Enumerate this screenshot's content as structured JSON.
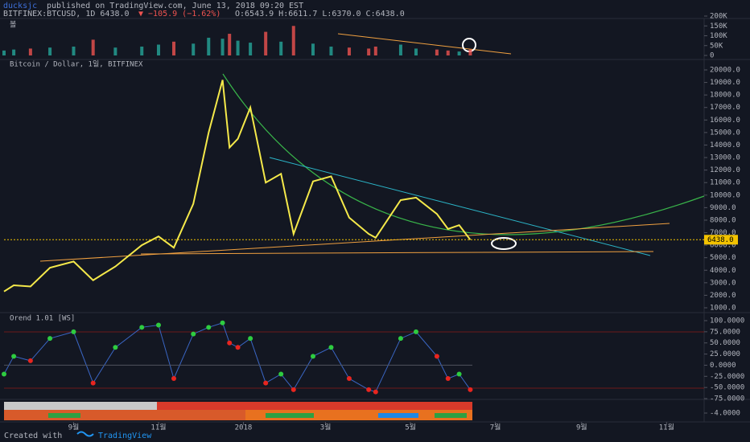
{
  "header": {
    "author": "ducksjc",
    "published": "published on TradingView.com, June 13, 2018 09:20 EST",
    "symbol": "BITFINEX:BTCUSD, 1D 6438.0",
    "change": "▼ −105.9 (−1.62%)",
    "ohlc": "O:6543.9 H:6611.7 L:6370.0 C:6438.0"
  },
  "chart_data": [
    {
      "type": "bar",
      "title": "볼",
      "up_color": "#26a69a",
      "down_color": "#ef5350",
      "values": [
        25000,
        30000,
        35000,
        40000,
        45000,
        80000,
        40000,
        45000,
        55000,
        70000,
        60000,
        90000,
        85000,
        110000,
        75000,
        65000,
        120000,
        70000,
        150000,
        60000,
        45000,
        40000,
        35000,
        45000,
        55000,
        35000,
        30000,
        25000,
        20000,
        30000
      ],
      "ylim": [
        0,
        200000
      ],
      "yticks": [
        {
          "value": 200000,
          "label": "200K"
        },
        {
          "value": 150000,
          "label": "150K"
        },
        {
          "value": 100000,
          "label": "100K"
        },
        {
          "value": 50000,
          "label": "50K"
        },
        0
      ]
    },
    {
      "type": "line",
      "title": "Bitcoin / Dollar, 1일, BITFINEX",
      "color": "#f5e94a",
      "x": [
        12,
        19,
        31,
        45,
        62,
        76,
        92,
        111,
        123,
        134,
        148,
        159,
        169,
        174,
        180,
        189,
        200,
        211,
        220,
        234,
        247,
        260,
        274,
        279,
        297,
        308,
        323,
        331,
        339,
        347
      ],
      "values": [
        2300,
        2800,
        2700,
        4200,
        4700,
        3200,
        4300,
        6000,
        6700,
        5800,
        9300,
        15000,
        19200,
        13800,
        14500,
        17000,
        11000,
        11700,
        6900,
        11100,
        11500,
        8200,
        6900,
        6600,
        9600,
        9800,
        8500,
        7300,
        7600,
        6438
      ],
      "last_price": {
        "value": 6438,
        "label": "6438.0"
      },
      "xlim": [
        12,
        515
      ],
      "xticks": [
        {
          "value": 62,
          "label": "9월"
        },
        {
          "value": 123,
          "label": "11월"
        },
        {
          "value": 184,
          "label": "2018"
        },
        {
          "value": 243,
          "label": "3월"
        },
        {
          "value": 304,
          "label": "5월"
        },
        {
          "value": 365,
          "label": "7월"
        },
        {
          "value": 427,
          "label": "9월"
        },
        {
          "value": 488,
          "label": "11월"
        }
      ],
      "ylim": [
        1000,
        20000
      ],
      "yticks": [
        {
          "value": 20000,
          "label": "20000.0"
        },
        {
          "value": 19000,
          "label": "19000.0"
        },
        {
          "value": 18000,
          "label": "18000.0"
        },
        {
          "value": 17000,
          "label": "17000.0"
        },
        {
          "value": 16000,
          "label": "16000.0"
        },
        {
          "value": 15000,
          "label": "15000.0"
        },
        {
          "value": 14000,
          "label": "14000.0"
        },
        {
          "value": 13000,
          "label": "13000.0"
        },
        {
          "value": 12000,
          "label": "12000.0"
        },
        {
          "value": 11000,
          "label": "11000.0"
        },
        {
          "value": 10000,
          "label": "10000.0"
        },
        {
          "value": 9000,
          "label": "9000.0"
        },
        {
          "value": 8000,
          "label": "8000.0"
        },
        {
          "value": 7000,
          "label": "7000.0"
        },
        {
          "value": 6000,
          "label": "6000.0"
        },
        {
          "value": 5000,
          "label": "5000.0"
        },
        {
          "value": 4000,
          "label": "4000.0"
        },
        {
          "value": 3000,
          "label": "3000.0"
        },
        {
          "value": 2000,
          "label": "2000.0"
        },
        {
          "value": 1000,
          "label": "1000.0"
        }
      ]
    },
    {
      "type": "oscillator",
      "title": "Orend 1.01 [WS]",
      "up_color": "#2ecc40",
      "down_color": "#e8251f",
      "values": [
        -20,
        20,
        10,
        60,
        75,
        -40,
        40,
        85,
        90,
        -30,
        70,
        85,
        95,
        50,
        40,
        60,
        -40,
        -20,
        -55,
        20,
        40,
        -30,
        -55,
        -60,
        60,
        75,
        20,
        -30,
        -20,
        -55
      ],
      "ylim": [
        -75,
        100
      ],
      "yticks": [
        {
          "value": 100,
          "label": "100.0000"
        },
        {
          "value": 75,
          "label": "75.0000"
        },
        {
          "value": 50,
          "label": "50.0000"
        },
        {
          "value": 25,
          "label": "25.0000"
        },
        {
          "value": 0,
          "label": "0.0000"
        },
        {
          "value": -25,
          "label": "-25.0000"
        },
        {
          "value": -50,
          "label": "-50.0000"
        },
        {
          "value": -75,
          "label": "-75.0000"
        }
      ]
    },
    {
      "type": "heatmap",
      "yticks": [
        {
          "value": -4,
          "label": "-4.0000"
        }
      ]
    }
  ],
  "footer": {
    "created": "Created with",
    "brand": "TradingView"
  }
}
